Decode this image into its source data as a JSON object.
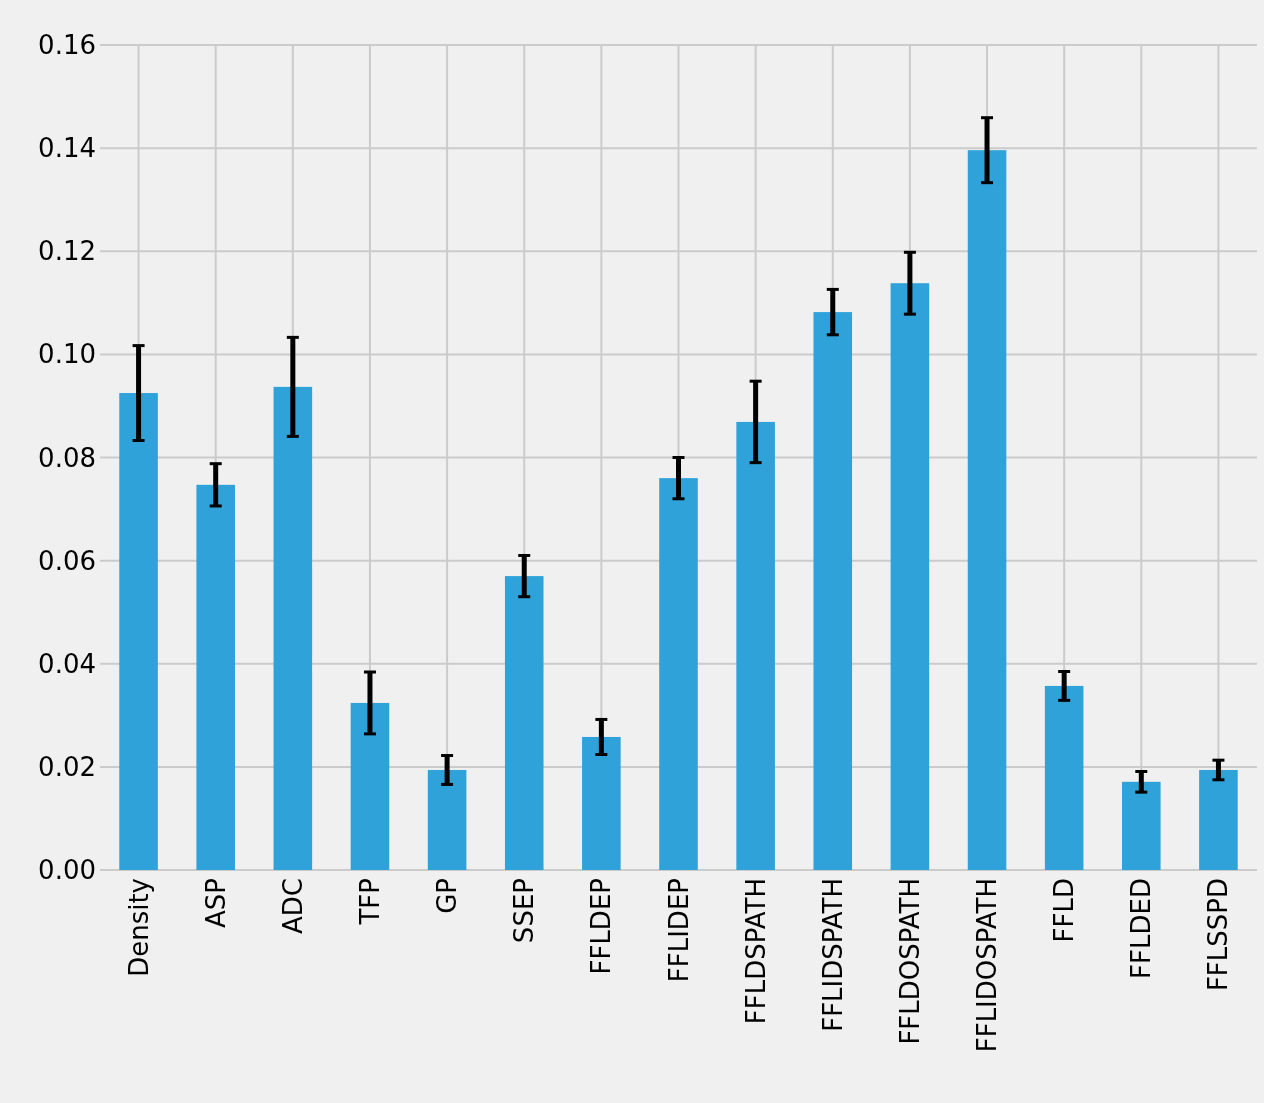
{
  "chart_data": {
    "type": "bar",
    "categories": [
      "Density",
      "ASP",
      "ADC",
      "TFP",
      "GP",
      "SSEP",
      "FFLDEP",
      "FFLIDEP",
      "FFLDSPATH",
      "FFLIDSPATH",
      "FFLDOSPATH",
      "FFLIDOSPATH",
      "FFLD",
      "FFLDED",
      "FFLSSPD"
    ],
    "values": [
      0.0925,
      0.0747,
      0.0937,
      0.0324,
      0.0194,
      0.057,
      0.0258,
      0.076,
      0.0869,
      0.1082,
      0.1138,
      0.1396,
      0.0357,
      0.0171,
      0.0194
    ],
    "errors": [
      0.0092,
      0.0041,
      0.0096,
      0.006,
      0.0028,
      0.004,
      0.0034,
      0.004,
      0.0079,
      0.0044,
      0.006,
      0.0063,
      0.0028,
      0.002,
      0.0019
    ],
    "color": "#30a2da",
    "ylim": [
      0,
      0.16
    ],
    "yticks": [
      {
        "value": 0,
        "label": "0.00"
      },
      {
        "value": 0.02,
        "label": "0.02"
      },
      {
        "value": 0.04,
        "label": "0.04"
      },
      {
        "value": 0.06,
        "label": "0.06"
      },
      {
        "value": 0.08,
        "label": "0.08"
      },
      {
        "value": 0.1,
        "label": "0.10"
      },
      {
        "value": 0.12,
        "label": "0.12"
      },
      {
        "value": 0.14,
        "label": "0.14"
      },
      {
        "value": 0.16,
        "label": "0.16"
      }
    ],
    "grid": true
  }
}
